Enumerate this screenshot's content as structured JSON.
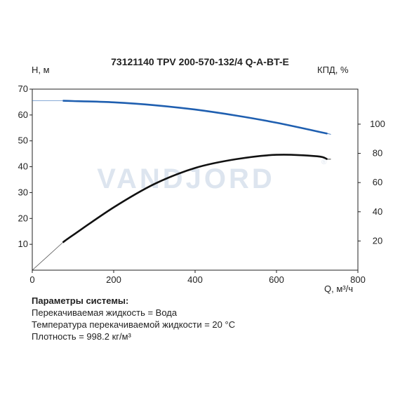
{
  "chart_data": {
    "type": "line",
    "title": "73121140 TPV 200-570-132/4 Q-A-BT-E",
    "xlabel": "Q, м³/ч",
    "ylabel_left": "H, м",
    "ylabel_right": "КПД, %",
    "xlim": [
      0,
      800
    ],
    "ylim_left": [
      0,
      70
    ],
    "ylim_right": [
      0,
      124
    ],
    "x_ticks": [
      0,
      200,
      400,
      600,
      800
    ],
    "y_ticks_left": [
      10,
      20,
      30,
      40,
      50,
      60,
      70
    ],
    "y_ticks_right": [
      20,
      40,
      60,
      80,
      100
    ],
    "grid": false,
    "watermark": "VANDJORD",
    "series": [
      {
        "axis": "left",
        "color": "#1f5fb0",
        "x": [
          0,
          75,
          100,
          200,
          300,
          400,
          500,
          600,
          725
        ],
        "y": [
          65.5,
          65.5,
          65.4,
          64.9,
          63.8,
          62.1,
          59.8,
          57.0,
          52.8
        ],
        "dashed_range": [
          0,
          75
        ]
      },
      {
        "axis": "right",
        "color": "#111111",
        "x": [
          0,
          75,
          100,
          200,
          300,
          400,
          500,
          600,
          700,
          725
        ],
        "y": [
          0,
          19,
          24,
          43,
          59,
          70,
          76,
          79,
          78,
          76
        ],
        "dashed_range": [
          0,
          75
        ]
      }
    ]
  },
  "params": {
    "heading": "Параметры системы:",
    "lines": [
      "Перекачиваемая жидкость = Вода",
      "Температура перекачиваемой жидкости = 20 °C",
      "Плотность = 998.2 кг/м³"
    ]
  },
  "colors": {
    "head": "#1f5fb0",
    "efficiency": "#111111",
    "watermark": "#dde5ef"
  }
}
